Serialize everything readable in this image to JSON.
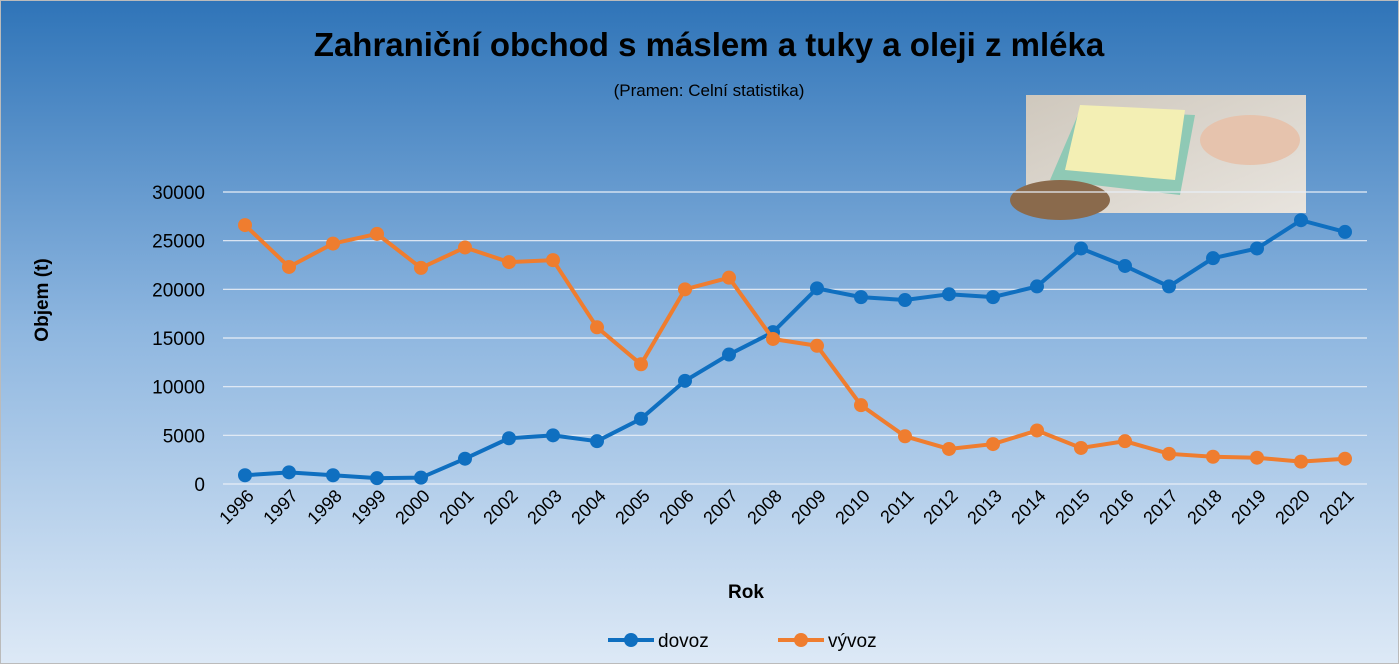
{
  "chart_data": {
    "type": "line",
    "title": "Zahraniční obchod s máslem a tuky a oleji z mléka",
    "subtitle": "(Pramen: Celní statistika)",
    "x_label": "Rok",
    "y_label": "Objem (t)",
    "categories": [
      "1996",
      "1997",
      "1998",
      "1999",
      "2000",
      "2001",
      "2002",
      "2003",
      "2004",
      "2005",
      "2006",
      "2007",
      "2008",
      "2009",
      "2010",
      "2011",
      "2012",
      "2013",
      "2014",
      "2015",
      "2016",
      "2017",
      "2018",
      "2019",
      "2020",
      "2021"
    ],
    "series": [
      {
        "name": "dovoz",
        "color": "#0f6fc0",
        "values": [
          900,
          1200,
          900,
          600,
          650,
          2600,
          4700,
          5000,
          4400,
          6700,
          10600,
          13300,
          15600,
          20100,
          19200,
          18900,
          19500,
          19200,
          20300,
          24200,
          22400,
          20300,
          23200,
          24200,
          27100,
          25900
        ]
      },
      {
        "name": "vývoz",
        "color": "#ef7d2f",
        "values": [
          26600,
          22300,
          24700,
          25700,
          22200,
          24300,
          22800,
          23000,
          16100,
          12300,
          20000,
          21200,
          14900,
          14200,
          8100,
          4900,
          3600,
          4100,
          5500,
          3700,
          4400,
          3100,
          2800,
          2700,
          2300,
          2600
        ]
      }
    ],
    "ylim": [
      0,
      30000
    ],
    "yticks": [
      0,
      5000,
      10000,
      15000,
      20000,
      25000,
      30000
    ],
    "grid": true,
    "legend": "bottom"
  }
}
